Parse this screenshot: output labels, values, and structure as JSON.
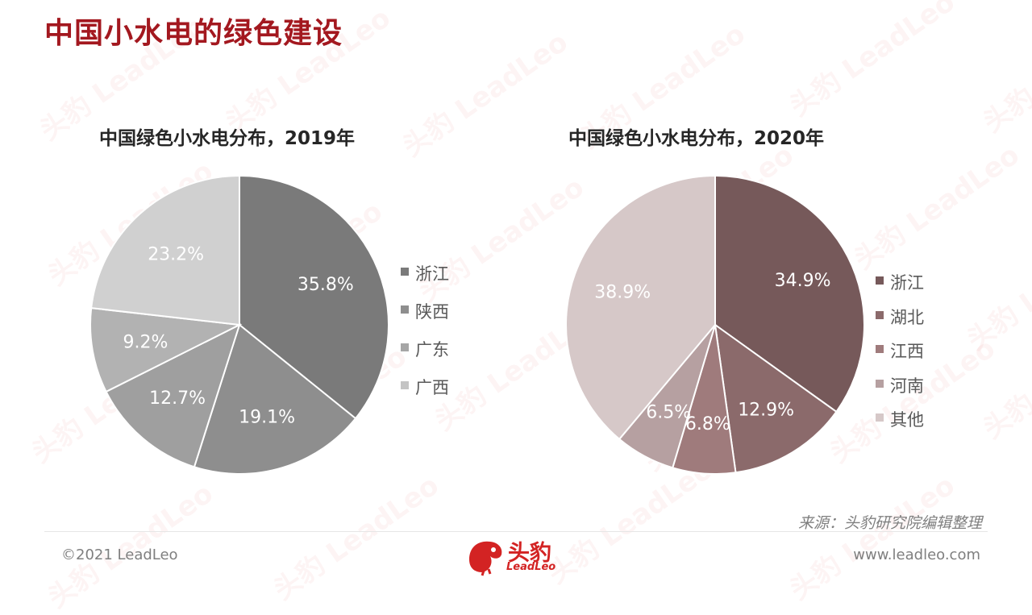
{
  "page": {
    "title": "中国小水电的绿色建设"
  },
  "chart_data": [
    {
      "type": "pie",
      "title": "中国绿色小水电分布，2019年",
      "categories": [
        "浙江",
        "陕西",
        "广东",
        "广西"
      ],
      "slices": [
        {
          "label": "",
          "value": 35.8,
          "display": "35.8%",
          "color": "#7a7a7a"
        },
        {
          "label": "",
          "value": 19.1,
          "display": "19.1%",
          "color": "#8e8e8e"
        },
        {
          "label": "",
          "value": 12.7,
          "display": "12.7%",
          "color": "#9f9f9f"
        },
        {
          "label": "",
          "value": 9.2,
          "display": "9.2%",
          "color": "#b2b2b2"
        },
        {
          "label": "",
          "value": 23.2,
          "display": "23.2%",
          "color": "#d0d0d0"
        }
      ],
      "legend": [
        {
          "label": "浙江",
          "color": "#7a7a7a"
        },
        {
          "label": "陕西",
          "color": "#8e8e8e"
        },
        {
          "label": "广东",
          "color": "#a6a6a6"
        },
        {
          "label": "广西",
          "color": "#c4c4c4"
        }
      ],
      "legend_position": "right"
    },
    {
      "type": "pie",
      "title": "中国绿色小水电分布，2020年",
      "categories": [
        "浙江",
        "湖北",
        "江西",
        "河南",
        "其他"
      ],
      "slices": [
        {
          "label": "浙江",
          "value": 34.9,
          "display": "34.9%",
          "color": "#76595a"
        },
        {
          "label": "湖北",
          "value": 12.9,
          "display": "12.9%",
          "color": "#8b6a6b"
        },
        {
          "label": "江西",
          "value": 6.8,
          "display": "6.8%",
          "color": "#9f7b7c"
        },
        {
          "label": "河南",
          "value": 6.5,
          "display": "6.5%",
          "color": "#b6a0a1"
        },
        {
          "label": "其他",
          "value": 38.9,
          "display": "38.9%",
          "color": "#d6c8c8"
        }
      ],
      "legend": [
        {
          "label": "浙江",
          "color": "#76595a"
        },
        {
          "label": "湖北",
          "color": "#8b6a6b"
        },
        {
          "label": "江西",
          "color": "#9f7b7c"
        },
        {
          "label": "河南",
          "color": "#b6a0a1"
        },
        {
          "label": "其他",
          "color": "#d6c8c8"
        }
      ],
      "legend_position": "right"
    }
  ],
  "footer": {
    "source": "来源：头豹研究院编辑整理",
    "copyright": "©2021 LeadLeo",
    "website": "www.leadleo.com",
    "logo_cn": "头豹",
    "logo_en": "LeadLeo"
  },
  "watermark": {
    "text": "头豹 LeadLeo"
  }
}
